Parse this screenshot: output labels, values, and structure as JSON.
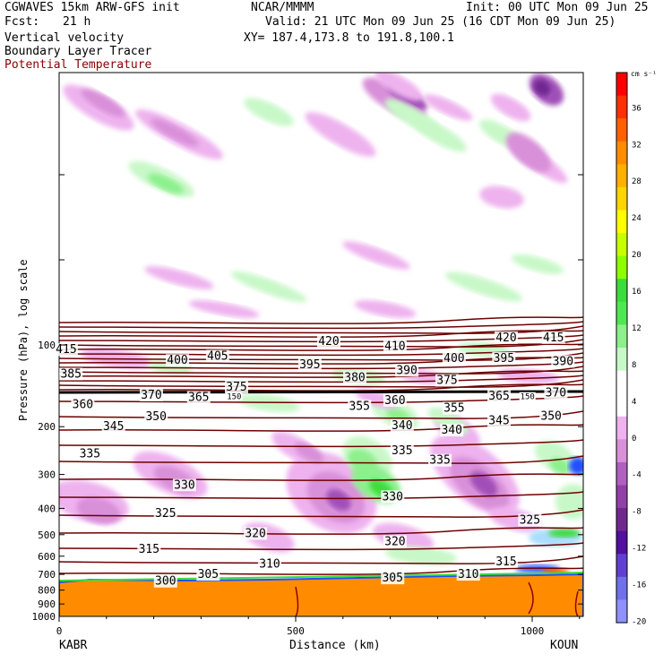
{
  "header": {
    "line1_left": "CGWAVES 15km ARW-GFS init",
    "line1_mid": "NCAR/MMMM",
    "line1_right": "Init: 00 UTC Mon 09 Jun 25",
    "fcst_label": "Fcst:",
    "fcst_value": "21 h",
    "valid": "Valid: 21 UTC Mon 09 Jun 25 (16 CDT Mon 09 Jun 25)",
    "field1": "Vertical velocity",
    "field2": "Boundary Layer Tracer",
    "field3": "Potential Temperature",
    "xy": "XY= 187.4,173.8 to 191.8,100.1",
    "field3_color": "#8b0000"
  },
  "chart_data": {
    "type": "heatmap",
    "ylabel": "Pressure (hPa), log scale",
    "xlabel": "Distance (km)",
    "x_ticks": [
      "0",
      "500",
      "1000"
    ],
    "x_tick_values": [
      0,
      500,
      1000
    ],
    "xlim": [
      0,
      1110
    ],
    "y_ticks": [
      "100",
      "200",
      "300",
      "400",
      "500",
      "600",
      "700",
      "800",
      "900",
      "1000"
    ],
    "y_tick_values": [
      100,
      200,
      300,
      400,
      500,
      600,
      700,
      800,
      900,
      1000
    ],
    "y_scale": "log",
    "ylim": [
      1000,
      10
    ],
    "left_station": "KABR",
    "right_station": "KOUN",
    "colorbar": {
      "units": "cm s⁻¹",
      "labels": [
        "36",
        "32",
        "28",
        "24",
        "20",
        "16",
        "12",
        "8",
        "4",
        "0",
        "-4",
        "-8",
        "-12",
        "-16",
        "-20"
      ],
      "colors": [
        "#ff0000",
        "#ff3000",
        "#ff6000",
        "#ff8c00",
        "#ffb000",
        "#ffd400",
        "#ffff00",
        "#c8ff00",
        "#8cff00",
        "#3cdc3c",
        "#50e850",
        "#8cf08c",
        "#c8f8c8",
        "#ffffff",
        "#ffffff",
        "#eeb2ee",
        "#d890d8",
        "#b060c0",
        "#9040a8",
        "#702890",
        "#5010a0",
        "#6040d0",
        "#7070e8",
        "#9090ff"
      ]
    },
    "theta_contours": {
      "color": "#6e0000",
      "labels": [
        {
          "text": "415",
          "x": 15,
          "p": 104
        },
        {
          "text": "400",
          "x": 250,
          "p": 114
        },
        {
          "text": "405",
          "x": 335,
          "p": 110
        },
        {
          "text": "420",
          "x": 570,
          "p": 97
        },
        {
          "text": "410",
          "x": 710,
          "p": 101
        },
        {
          "text": "400",
          "x": 835,
          "p": 112
        },
        {
          "text": "395",
          "x": 940,
          "p": 112
        },
        {
          "text": "420",
          "x": 945,
          "p": 94
        },
        {
          "text": "415",
          "x": 1045,
          "p": 94
        },
        {
          "text": "390",
          "x": 1065,
          "p": 115
        },
        {
          "text": "395",
          "x": 530,
          "p": 118
        },
        {
          "text": "390",
          "x": 735,
          "p": 124
        },
        {
          "text": "385",
          "x": 25,
          "p": 128
        },
        {
          "text": "380",
          "x": 625,
          "p": 132
        },
        {
          "text": "375",
          "x": 375,
          "p": 143
        },
        {
          "text": "375",
          "x": 820,
          "p": 135
        },
        {
          "text": "370",
          "x": 195,
          "p": 153
        },
        {
          "text": "370",
          "x": 1050,
          "p": 150
        },
        {
          "text": "365",
          "x": 295,
          "p": 156
        },
        {
          "text": "365",
          "x": 930,
          "p": 154
        },
        {
          "text": "360",
          "x": 710,
          "p": 160
        },
        {
          "text": "360",
          "x": 50,
          "p": 166
        },
        {
          "text": "355",
          "x": 635,
          "p": 168
        },
        {
          "text": "355",
          "x": 835,
          "p": 171
        },
        {
          "text": "350",
          "x": 205,
          "p": 184
        },
        {
          "text": "350",
          "x": 1040,
          "p": 183
        },
        {
          "text": "345",
          "x": 115,
          "p": 200
        },
        {
          "text": "345",
          "x": 930,
          "p": 190
        },
        {
          "text": "340",
          "x": 725,
          "p": 198
        },
        {
          "text": "340",
          "x": 830,
          "p": 206
        },
        {
          "text": "335",
          "x": 65,
          "p": 252
        },
        {
          "text": "335",
          "x": 725,
          "p": 245
        },
        {
          "text": "335",
          "x": 805,
          "p": 266
        },
        {
          "text": "330",
          "x": 265,
          "p": 328
        },
        {
          "text": "330",
          "x": 705,
          "p": 362
        },
        {
          "text": "325",
          "x": 225,
          "p": 418
        },
        {
          "text": "325",
          "x": 995,
          "p": 442
        },
        {
          "text": "320",
          "x": 415,
          "p": 495
        },
        {
          "text": "320",
          "x": 710,
          "p": 530
        },
        {
          "text": "315",
          "x": 190,
          "p": 565
        },
        {
          "text": "315",
          "x": 945,
          "p": 628
        },
        {
          "text": "310",
          "x": 445,
          "p": 642
        },
        {
          "text": "310",
          "x": 865,
          "p": 700
        },
        {
          "text": "305",
          "x": 315,
          "p": 700
        },
        {
          "text": "305",
          "x": 705,
          "p": 722
        },
        {
          "text": "300",
          "x": 225,
          "p": 742
        }
      ],
      "tropopause_labels": [
        {
          "text": "150",
          "x": 370,
          "p": 155
        },
        {
          "text": "150",
          "x": 990,
          "p": 155
        }
      ]
    }
  }
}
